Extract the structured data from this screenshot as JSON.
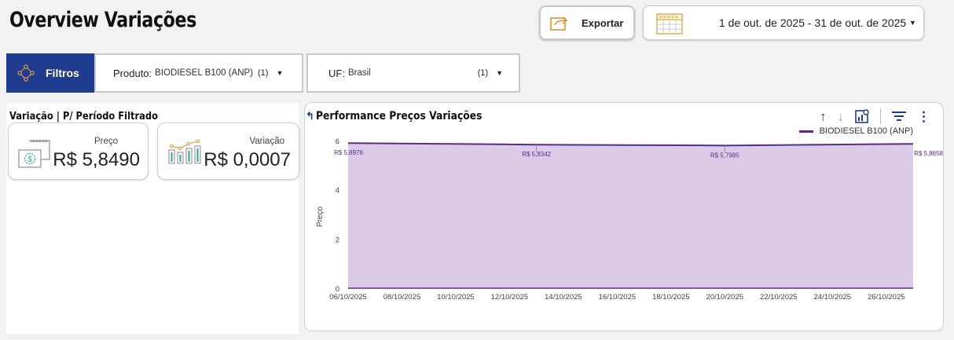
{
  "page": {
    "title": "Overview Variações"
  },
  "header": {
    "export_label": "Exportar",
    "date_range": "1 de out. de 2025 - 31 de out. de 2025",
    "date_caret_icon": "caret-down-icon"
  },
  "filters": {
    "filtros_label": "Filtros",
    "produto": {
      "key": "Produto:",
      "value": "BIODIESEL B100 (ANP)",
      "count": "(1)"
    },
    "uf": {
      "key": "UF:",
      "value": "Brasil",
      "count": "(1)"
    }
  },
  "left": {
    "heading": "Variação | P/ Período Filtrado",
    "preco": {
      "caption": "Preço",
      "value": "R$ 5,8490"
    },
    "variacao": {
      "caption": "Variação",
      "value": "R$ 0,0007"
    }
  },
  "chart": {
    "title": "Performance Preços Variações",
    "toolbar_icons": [
      "arrow-up-icon",
      "arrow-down-icon",
      "chart-settings-icon",
      "filter-icon",
      "more-vert-icon"
    ],
    "accent_color": "#5b2a86",
    "fill_color": "#dccbe8"
  },
  "chart_data": {
    "type": "area",
    "title": "Performance Preços Variações",
    "xlabel": "",
    "ylabel": "Preço",
    "ylim": [
      0,
      6
    ],
    "yticks": [
      "0",
      "2",
      "4",
      "6"
    ],
    "x_ticks": [
      "06/10/2025",
      "08/10/2025",
      "10/10/2025",
      "12/10/2025",
      "14/10/2025",
      "16/10/2025",
      "18/10/2025",
      "20/10/2025",
      "22/10/2025",
      "24/10/2025",
      "26/10/2025"
    ],
    "x_start": "06/10/2025",
    "x_end": "27/10/2025",
    "legend": "top-right",
    "series": [
      {
        "name": "BIODIESEL B100 (ANP)",
        "color": "#5b2a86",
        "points": [
          {
            "x": "06/10/2025",
            "y": 5.8976
          },
          {
            "x": "13/10/2025",
            "y": 5.8342
          },
          {
            "x": "20/10/2025",
            "y": 5.7985
          },
          {
            "x": "27/10/2025",
            "y": 5.8658
          }
        ],
        "labels": [
          "R$ 5,8976",
          "R$ 5,8342",
          "R$ 5,7985",
          "R$ 5,8658"
        ]
      }
    ]
  }
}
